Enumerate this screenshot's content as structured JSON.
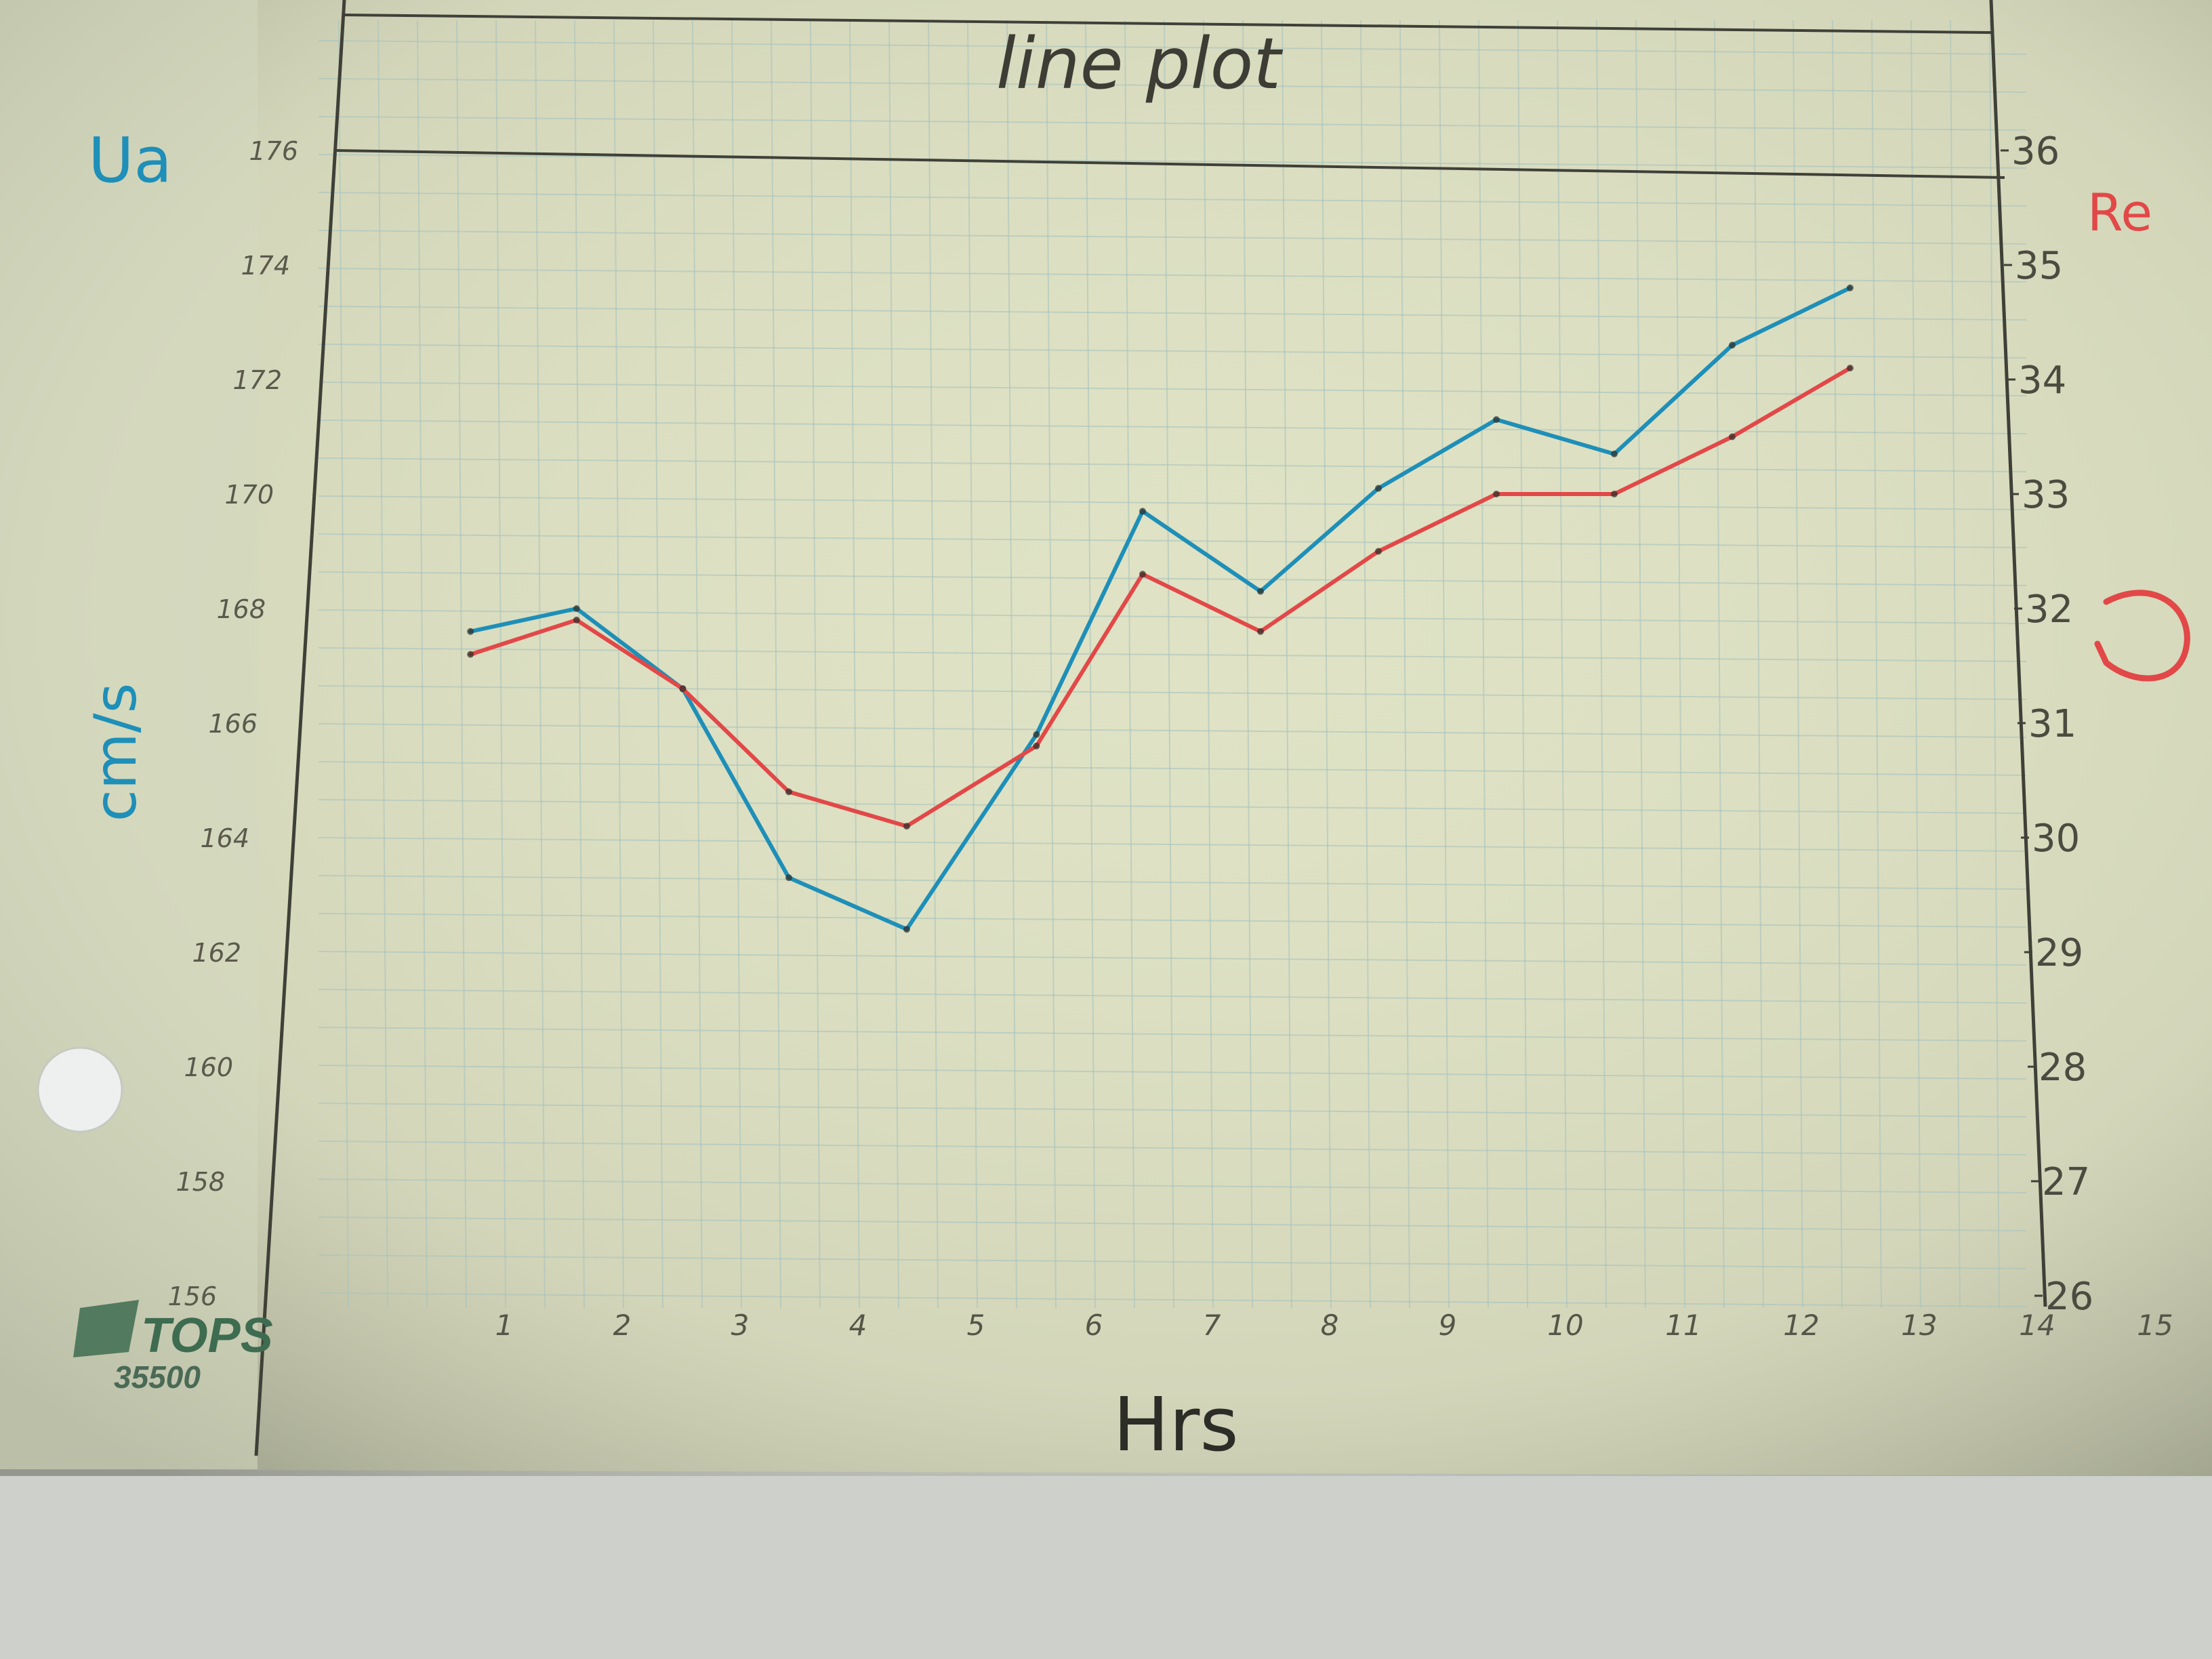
{
  "chart_data": {
    "type": "line",
    "title": "line plot",
    "xlabel": "Hrs",
    "ylabel_left": "Ua  cm/s",
    "ylabel_left_symbol": "Ua",
    "ylabel_left_units": "cm/s",
    "ylabel_right": "Re",
    "x_ticks": [
      "1",
      "2",
      "3",
      "4",
      "5",
      "6",
      "7",
      "8",
      "9",
      "10",
      "11",
      "12",
      "13",
      "14",
      "15"
    ],
    "y_left_ticks": [
      "176",
      "174",
      "172",
      "170",
      "168",
      "166",
      "164",
      "162",
      "160",
      "158",
      "156"
    ],
    "y_right_ticks": [
      "36",
      "35",
      "34",
      "33",
      "32",
      "31",
      "30",
      "29",
      "28",
      "27",
      "26"
    ],
    "xlim": [
      0,
      15
    ],
    "ylim_left": [
      156,
      176
    ],
    "ylim_right": [
      26,
      36
    ],
    "grid": true,
    "series": [
      {
        "name": "Ua",
        "color": "#1e8fb8",
        "axis": "left",
        "x": [
          1.3,
          2.2,
          3.1,
          4.0,
          5.0,
          6.1,
          7.0,
          8.0,
          9.0,
          10.0,
          11.0,
          12.0,
          13.0
        ],
        "values": [
          167.6,
          168.0,
          166.6,
          163.3,
          162.4,
          165.8,
          169.7,
          168.3,
          170.1,
          171.3,
          170.7,
          172.6,
          173.6
        ]
      },
      {
        "name": "Re",
        "color": "#e24848",
        "axis": "right",
        "x": [
          1.3,
          2.2,
          3.1,
          4.0,
          5.0,
          6.1,
          7.0,
          8.0,
          9.0,
          10.0,
          11.0,
          12.0,
          13.0
        ],
        "values": [
          31.6,
          31.9,
          31.3,
          30.4,
          30.1,
          30.8,
          32.3,
          31.8,
          32.5,
          33.0,
          33.0,
          33.5,
          34.1
        ]
      }
    ]
  },
  "logo": {
    "brand": "TOPS",
    "number": "35500"
  }
}
